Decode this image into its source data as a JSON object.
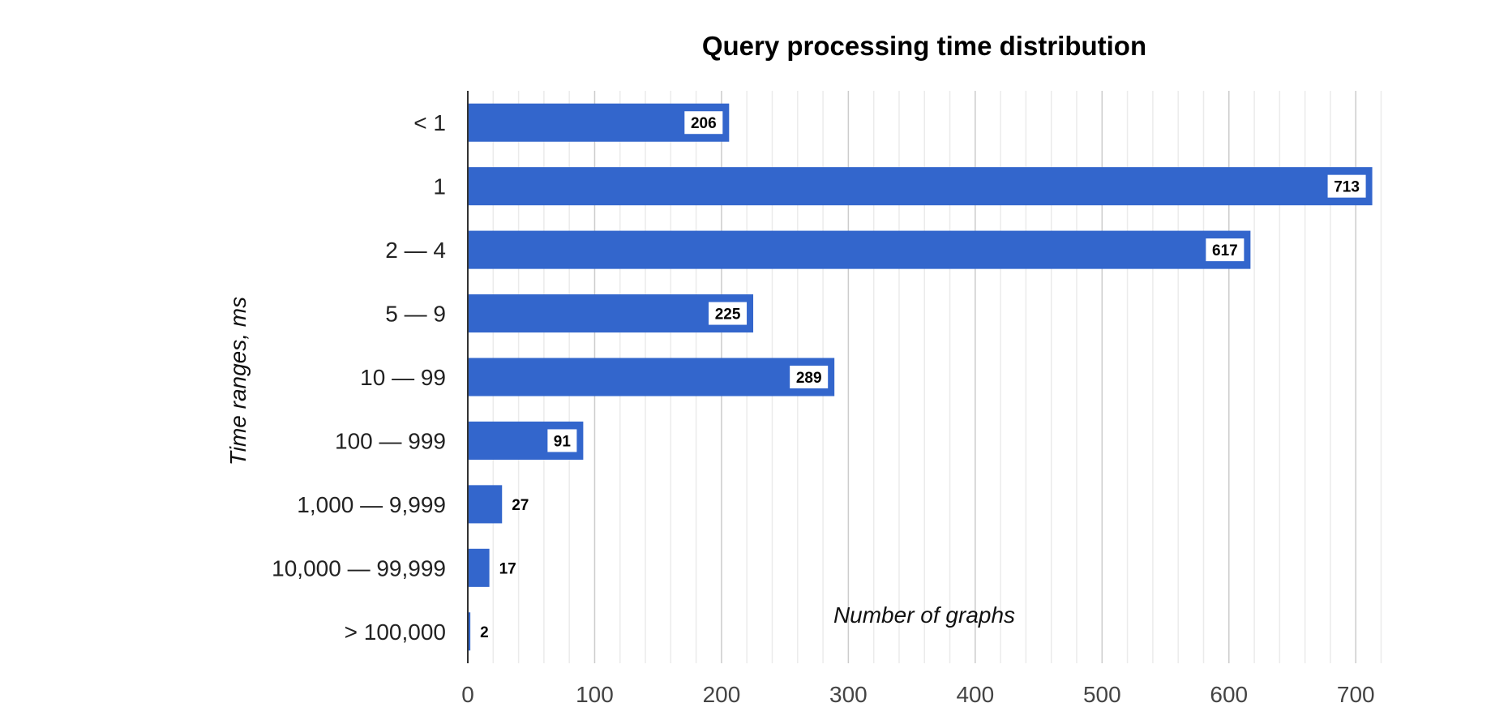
{
  "chart_data": {
    "type": "bar",
    "orientation": "horizontal",
    "title": "Query processing time distribution",
    "xlabel": "Number of graphs",
    "ylabel": "Time ranges, ms",
    "categories": [
      "< 1",
      "1",
      "2 — 4",
      "5 — 9",
      "10 — 99",
      "100 — 999",
      "1,000 — 9,999",
      "10,000 — 99,999",
      "> 100,000"
    ],
    "values": [
      206,
      713,
      617,
      225,
      289,
      91,
      27,
      17,
      2
    ],
    "value_labels": [
      "206",
      "713",
      "617",
      "225",
      "289",
      "91",
      "27",
      "17",
      "2"
    ],
    "xlim": [
      0,
      735
    ],
    "x_ticks": [
      0,
      100,
      200,
      300,
      400,
      500,
      600,
      700
    ],
    "x_tick_labels": [
      "0",
      "100",
      "200",
      "300",
      "400",
      "500",
      "600",
      "700"
    ],
    "minor_grid_step": 20,
    "grid": true,
    "legend": "none",
    "bar_color": "#3366cc"
  }
}
